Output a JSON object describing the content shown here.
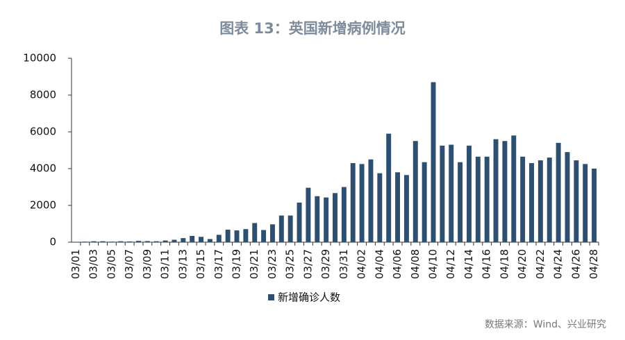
{
  "chart_data": {
    "type": "bar",
    "title": "图表 13：英国新增病例情况",
    "categories": [
      "03/01",
      null,
      "03/03",
      null,
      "03/05",
      null,
      "03/07",
      null,
      "03/09",
      null,
      "03/11",
      null,
      "03/13",
      null,
      "03/15",
      null,
      "03/17",
      null,
      "03/19",
      null,
      "03/21",
      null,
      "03/23",
      null,
      "03/25",
      null,
      "03/27",
      null,
      "03/29",
      null,
      "03/31",
      null,
      "04/02",
      null,
      "04/04",
      null,
      "04/06",
      null,
      "04/08",
      null,
      "04/10",
      null,
      "04/12",
      null,
      "04/14",
      null,
      "04/16",
      null,
      "04/18",
      null,
      "04/20",
      null,
      "04/22",
      null,
      "04/24",
      null,
      "04/26",
      null,
      "04/28"
    ],
    "series": [
      {
        "name": "新增确诊人数",
        "color": "#2e4f6f",
        "values": [
          20,
          30,
          50,
          50,
          30,
          50,
          40,
          70,
          60,
          50,
          90,
          130,
          220,
          340,
          290,
          170,
          400,
          680,
          640,
          710,
          1040,
          660,
          970,
          1450,
          1450,
          2150,
          2960,
          2500,
          2430,
          2670,
          3000,
          4300,
          4250,
          4500,
          3750,
          5900,
          3800,
          3650,
          5500,
          4350,
          8700,
          5250,
          5300,
          4350,
          5250,
          4650,
          4650,
          5600,
          5500,
          5800,
          4650,
          4300,
          4450,
          4600,
          5400,
          4900,
          4450,
          4250,
          4000
        ]
      }
    ],
    "ylim": [
      0,
      10000
    ],
    "yticks": [
      0,
      2000,
      4000,
      6000,
      8000,
      10000
    ],
    "grid": false,
    "legend": "bottom",
    "source": "数据来源：Wind、兴业研究"
  }
}
